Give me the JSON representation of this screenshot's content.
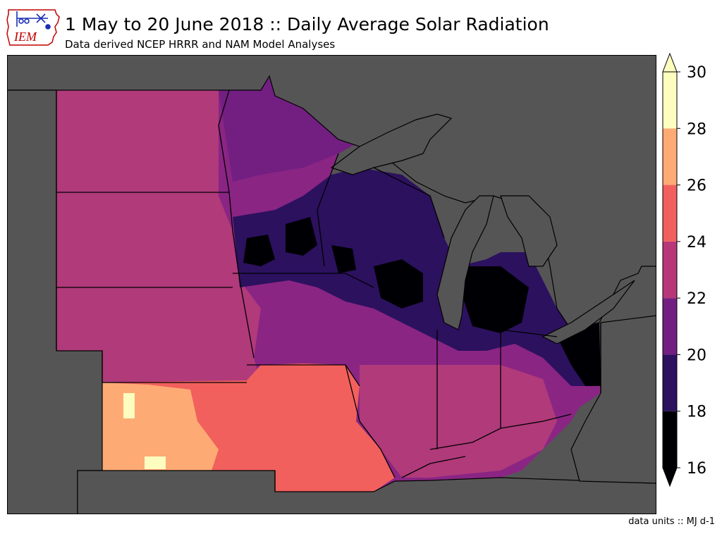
{
  "header": {
    "title": "1 May to 20 June 2018 :: Daily Average Solar Radiation",
    "subtitle": "Data derived NCEP HRRR and NAM Model Analyses",
    "logo_text": "IEM"
  },
  "colorbar": {
    "min": 16,
    "max": 30,
    "extend": "both",
    "ticks": [
      "16",
      "18",
      "20",
      "22",
      "24",
      "26",
      "28",
      "30"
    ],
    "bins": [
      {
        "from": 16,
        "to": 18,
        "color": "#000004"
      },
      {
        "from": 18,
        "to": 20,
        "color": "#2c115f"
      },
      {
        "from": 20,
        "to": 22,
        "color": "#721f81"
      },
      {
        "from": 22,
        "to": 24,
        "color": "#b73779"
      },
      {
        "from": 24,
        "to": 26,
        "color": "#f1605d"
      },
      {
        "from": 26,
        "to": 28,
        "color": "#feaa74"
      },
      {
        "from": 28,
        "to": 30,
        "color": "#fcfdbf"
      }
    ]
  },
  "map": {
    "background_color": "#555555",
    "border_color": "#000000"
  },
  "footer": {
    "units": "data units :: MJ d-1"
  }
}
